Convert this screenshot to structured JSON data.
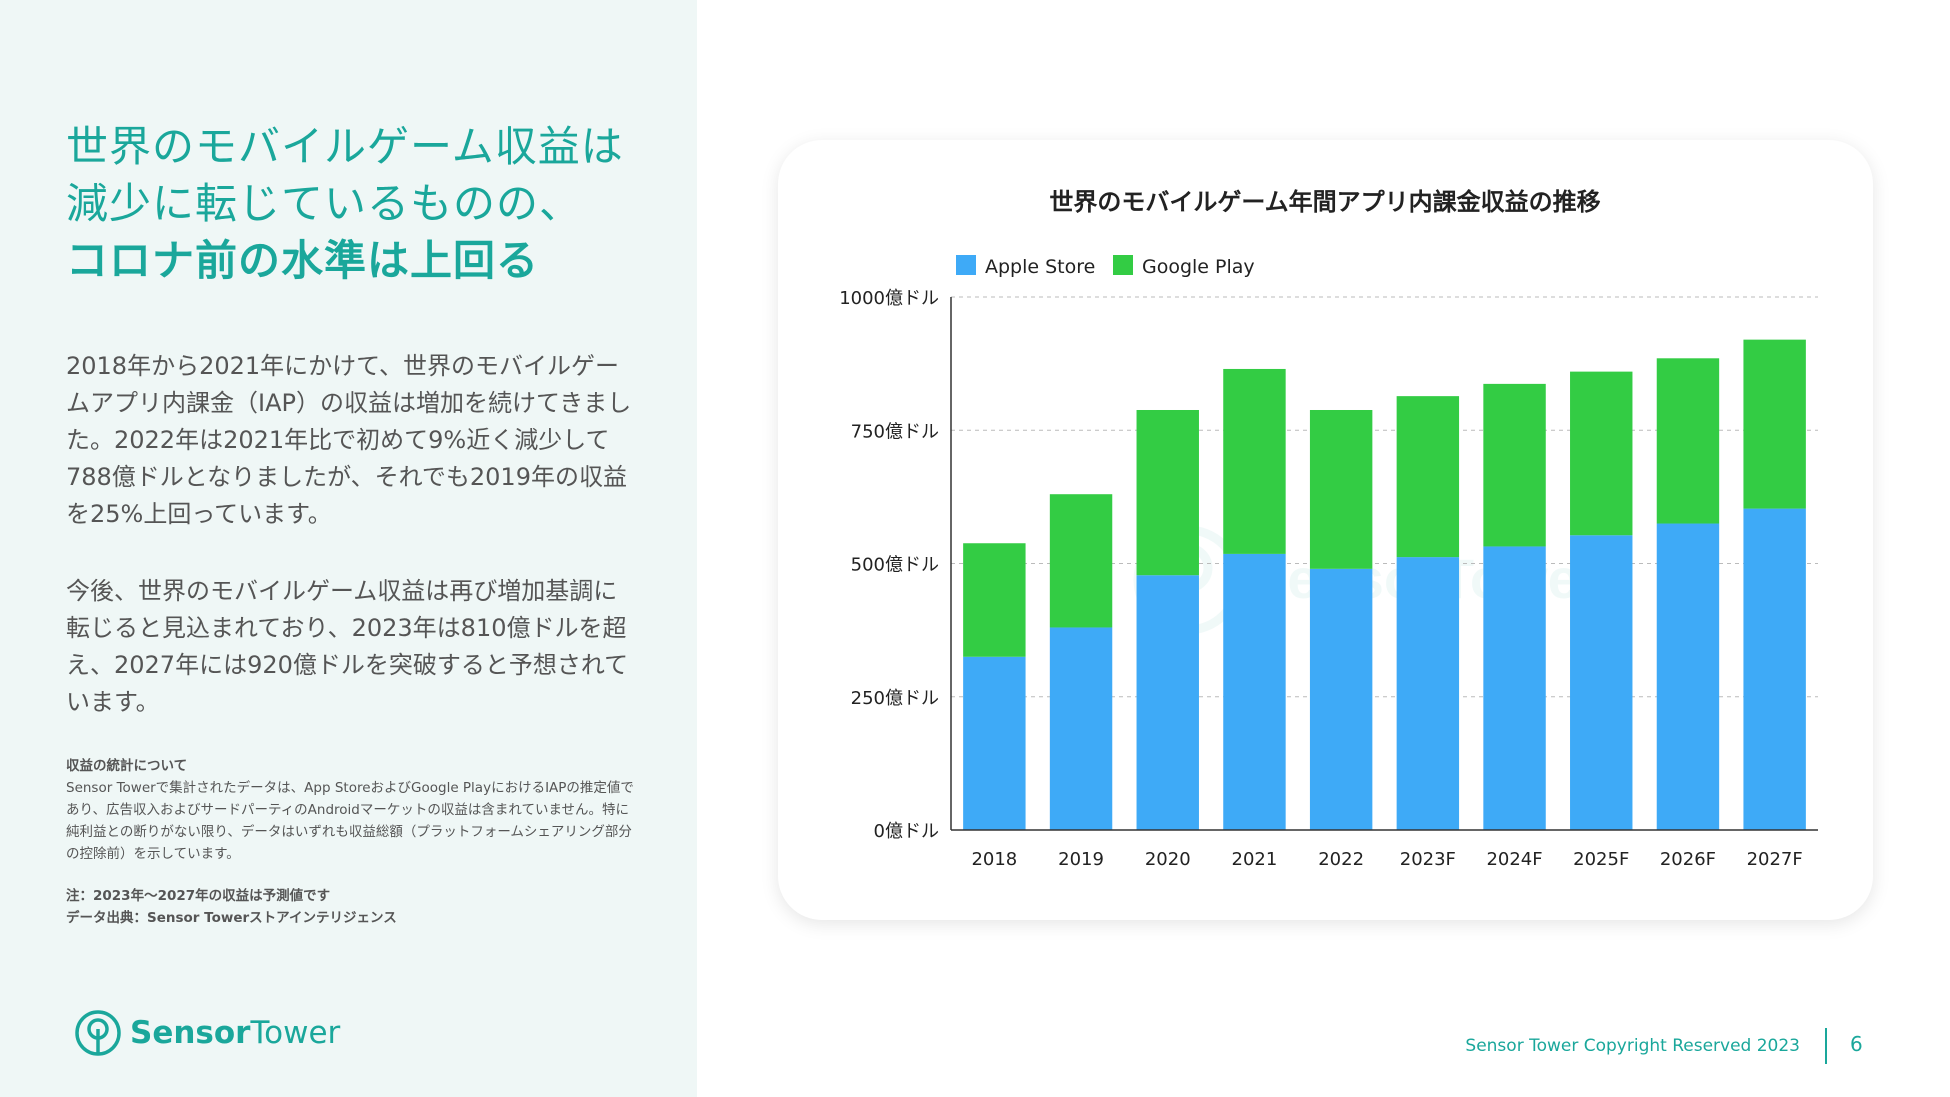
{
  "headline": {
    "line1": "世界のモバイルゲーム収益は",
    "line2": "減少に転じているものの、",
    "line3": "コロナ前の水準は上回る"
  },
  "body": {
    "paragraph1": "2018年から2021年にかけて、世界のモバイルゲームアプリ内課金（IAP）の収益は増加を続けてきました。2022年は2021年比で初めて9%近く減少して788億ドルとなりましたが、それでも2019年の収益を25%上回っています。",
    "paragraph2": "今後、世界のモバイルゲーム収益は再び増加基調に転じると見込まれており、2023年は810億ドルを超え、2027年には920億ドルを突破すると予想されています。"
  },
  "notes": {
    "title": "収益の統計について",
    "text": "Sensor Towerで集計されたデータは、App StoreおよびGoogle PlayにおけるIAPの推定値であり、広告収入およびサードパーティのAndroidマーケットの収益は含まれていません。特に純利益との断りがない限り、データはいずれも収益総額（プラットフォームシェアリング部分の控除前）を示しています。",
    "forecast_note": "注：2023年〜2027年の収益は予測値です",
    "source": "データ出典：Sensor Towerストアインテリジェンス"
  },
  "logo": {
    "text_part1": "Sensor",
    "text_part2": "Tower",
    "icon": "sensor-tower-logo-icon"
  },
  "footer": {
    "copyright": "Sensor Tower Copyright Reserved 2023",
    "page_number": "6"
  },
  "watermark": {
    "text": "SensorTower"
  },
  "colors": {
    "brand_teal": "#1aa79b",
    "apple": "#3eaaf7",
    "google": "#33cc44"
  },
  "chart_data": {
    "type": "bar",
    "stacked": true,
    "title": "世界のモバイルゲーム年間アプリ内課金収益の推移",
    "categories": [
      "2018",
      "2019",
      "2020",
      "2021",
      "2022",
      "2023F",
      "2024F",
      "2025F",
      "2026F",
      "2027F"
    ],
    "series": [
      {
        "name": "Apple Store",
        "color": "#3eaaf7",
        "values": [
          325,
          380,
          478,
          518,
          490,
          512,
          532,
          553,
          575,
          603
        ]
      },
      {
        "name": "Google Play",
        "color": "#33cc44",
        "values": [
          213,
          250,
          310,
          347,
          298,
          302,
          305,
          307,
          310,
          317
        ]
      }
    ],
    "ylim": [
      0,
      1000
    ],
    "yticks": [
      0,
      250,
      500,
      750,
      1000
    ],
    "ytick_labels": [
      "0億ドル",
      "250億ドル",
      "500億ドル",
      "750億ドル",
      "1000億ドル"
    ],
    "xlabel": "",
    "ylabel": "",
    "grid": true,
    "legend_position": "top-left"
  }
}
